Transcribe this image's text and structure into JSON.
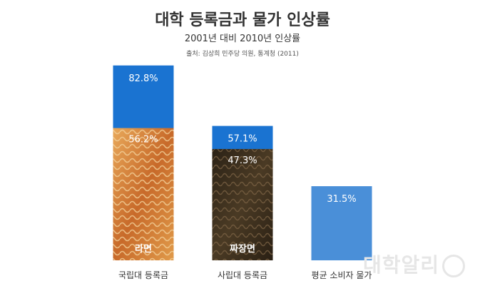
{
  "header": {
    "title": "대학 등록금과 물가 인상률",
    "subtitle": "2001년 대비 2010년 인상률",
    "source": "출처: 김상희 민주당 의원, 통계청 (2011)"
  },
  "brand": {
    "text": "대학알리"
  },
  "colors": {
    "tuition": "#1a73d1",
    "price": "#4a8fd8",
    "ramen": "#d98a3a",
    "jjajang": "#3a2e1c"
  },
  "chart_data": {
    "type": "bar",
    "title": "대학 등록금과 물가 인상률",
    "subtitle": "2001년 대비 2010년 인상률",
    "categories": [
      "국립대 등록금",
      "사립대 등록금",
      "평균 소비자 물가"
    ],
    "units": "%",
    "ylim": [
      0,
      100
    ],
    "grid": false,
    "bars": [
      {
        "category": "국립대 등록금",
        "value": 82.8,
        "label": "82.8%",
        "image_value": 56.2,
        "image_label": "56.2%",
        "image_name": "라면"
      },
      {
        "category": "사립대 등록금",
        "value": 57.1,
        "label": "57.1%",
        "image_value": 47.3,
        "image_label": "47.3%",
        "image_name": "짜장면"
      },
      {
        "category": "평균 소비자 물가",
        "value": 31.5,
        "label": "31.5%"
      }
    ]
  }
}
